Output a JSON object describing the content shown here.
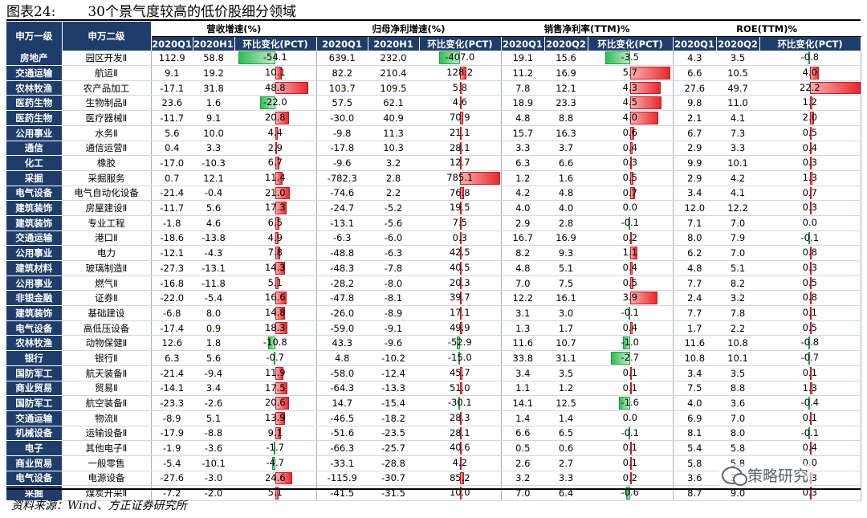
{
  "title": {
    "label": "图表24:",
    "text": "30个景气度较高的低价股细分领域"
  },
  "headers": {
    "l1": "申万一级",
    "l2": "申万二级",
    "groups": [
      "营收增速(%)",
      "归母净利增速(%)",
      "销售净利率(TTM)%",
      "ROE(TTM)%"
    ],
    "sub": [
      [
        "2020Q1",
        "2020H1",
        "环比变化(PCT)"
      ],
      [
        "2020Q1",
        "2020H1",
        "环比变化(PCT)"
      ],
      [
        "2020Q1",
        "2020Q2",
        "环比变化(PCT)"
      ],
      [
        "2020Q1",
        "2020Q2",
        "环比变化(PCT)"
      ]
    ]
  },
  "rows": [
    {
      "l1": "房地产",
      "l2": "园区开发Ⅱ",
      "rev": [
        "112.9",
        "58.8",
        "-54.1"
      ],
      "np": [
        "639.1",
        "232.0",
        "-407.0"
      ],
      "nm": [
        "19.1",
        "15.6",
        "-3.5"
      ],
      "roe": [
        "4.3",
        "3.5",
        "-0.8"
      ]
    },
    {
      "l1": "交通运输",
      "l2": "航运Ⅱ",
      "rev": [
        "9.1",
        "19.2",
        "10.1"
      ],
      "np": [
        "82.2",
        "210.4",
        "128.2"
      ],
      "nm": [
        "11.2",
        "16.9",
        "5.7"
      ],
      "roe": [
        "6.6",
        "10.5",
        "4.0"
      ]
    },
    {
      "l1": "农林牧渔",
      "l2": "农产品加工",
      "rev": [
        "-17.1",
        "31.8",
        "48.8"
      ],
      "np": [
        "103.7",
        "109.5",
        "5.8"
      ],
      "nm": [
        "7.8",
        "12.1",
        "4.3"
      ],
      "roe": [
        "27.6",
        "49.7",
        "22.2"
      ]
    },
    {
      "l1": "医药生物",
      "l2": "生物制品Ⅱ",
      "rev": [
        "23.6",
        "1.6",
        "-22.0"
      ],
      "np": [
        "57.5",
        "62.1",
        "4.6"
      ],
      "nm": [
        "18.9",
        "23.3",
        "4.5"
      ],
      "roe": [
        "9.8",
        "11.0",
        "1.2"
      ]
    },
    {
      "l1": "医药生物",
      "l2": "医疗器械Ⅱ",
      "rev": [
        "-11.7",
        "9.1",
        "20.8"
      ],
      "np": [
        "-30.0",
        "40.9",
        "70.9"
      ],
      "nm": [
        "4.8",
        "8.8",
        "4.0"
      ],
      "roe": [
        "2.1",
        "4.1",
        "2.0"
      ]
    },
    {
      "l1": "公用事业",
      "l2": "水务Ⅱ",
      "rev": [
        "5.6",
        "10.0",
        "4.4"
      ],
      "np": [
        "-9.8",
        "11.3",
        "21.1"
      ],
      "nm": [
        "15.7",
        "16.3",
        "0.6"
      ],
      "roe": [
        "6.7",
        "7.3",
        "0.5"
      ]
    },
    {
      "l1": "通信",
      "l2": "通信运营Ⅱ",
      "rev": [
        "0.4",
        "3.3",
        "2.9"
      ],
      "np": [
        "-17.8",
        "10.3",
        "28.1"
      ],
      "nm": [
        "3.3",
        "3.7",
        "0.4"
      ],
      "roe": [
        "2.9",
        "3.3",
        "0.4"
      ]
    },
    {
      "l1": "化工",
      "l2": "橡胶",
      "rev": [
        "-17.0",
        "-10.3",
        "6.7"
      ],
      "np": [
        "-9.6",
        "3.2",
        "12.7"
      ],
      "nm": [
        "6.3",
        "6.6",
        "0.3"
      ],
      "roe": [
        "9.9",
        "10.1",
        "0.3"
      ]
    },
    {
      "l1": "采掘",
      "l2": "采掘服务",
      "rev": [
        "0.7",
        "12.1",
        "11.4"
      ],
      "np": [
        "-782.3",
        "2.8",
        "785.1"
      ],
      "nm": [
        "1.2",
        "1.6",
        "0.5"
      ],
      "roe": [
        "2.9",
        "4.2",
        "1.3"
      ]
    },
    {
      "l1": "电气设备",
      "l2": "电气自动化设备",
      "rev": [
        "-21.4",
        "-0.4",
        "21.0"
      ],
      "np": [
        "-74.6",
        "2.2",
        "76.8"
      ],
      "nm": [
        "4.2",
        "4.8",
        "0.7"
      ],
      "roe": [
        "3.4",
        "4.1",
        "0.7"
      ]
    },
    {
      "l1": "建筑装饰",
      "l2": "房屋建设Ⅱ",
      "rev": [
        "-11.7",
        "5.6",
        "17.3"
      ],
      "np": [
        "-24.7",
        "-5.2",
        "19.5"
      ],
      "nm": [
        "4.0",
        "4.0",
        "0.0"
      ],
      "roe": [
        "12.0",
        "12.2",
        "0.3"
      ]
    },
    {
      "l1": "建筑装饰",
      "l2": "专业工程",
      "rev": [
        "-1.8",
        "4.6",
        "6.5"
      ],
      "np": [
        "-13.1",
        "-5.6",
        "7.5"
      ],
      "nm": [
        "2.9",
        "2.8",
        "-0.1"
      ],
      "roe": [
        "7.1",
        "7.0",
        "0.0"
      ]
    },
    {
      "l1": "交通运输",
      "l2": "港口Ⅱ",
      "rev": [
        "-18.6",
        "-13.8",
        "4.9"
      ],
      "np": [
        "-6.3",
        "-6.0",
        "0.3"
      ],
      "nm": [
        "16.7",
        "16.9",
        "0.2"
      ],
      "roe": [
        "8.0",
        "7.9",
        "-0.1"
      ]
    },
    {
      "l1": "公用事业",
      "l2": "电力",
      "rev": [
        "-12.1",
        "-4.3",
        "7.8"
      ],
      "np": [
        "-48.8",
        "-6.3",
        "42.5"
      ],
      "nm": [
        "8.2",
        "9.3",
        "1.1"
      ],
      "roe": [
        "6.2",
        "7.0",
        "0.8"
      ]
    },
    {
      "l1": "建筑材料",
      "l2": "玻璃制造Ⅱ",
      "rev": [
        "-27.3",
        "-13.1",
        "14.3"
      ],
      "np": [
        "-48.3",
        "-7.8",
        "40.5"
      ],
      "nm": [
        "4.8",
        "5.1",
        "0.4"
      ],
      "roe": [
        "4.8",
        "5.1",
        "0.3"
      ]
    },
    {
      "l1": "公用事业",
      "l2": "燃气Ⅱ",
      "rev": [
        "-16.8",
        "-11.8",
        "5.1"
      ],
      "np": [
        "-28.2",
        "-8.0",
        "20.3"
      ],
      "nm": [
        "7.0",
        "7.5",
        "0.5"
      ],
      "roe": [
        "7.7",
        "8.2",
        "0.5"
      ]
    },
    {
      "l1": "非银金融",
      "l2": "证券Ⅱ",
      "rev": [
        "-22.0",
        "-5.4",
        "16.6"
      ],
      "np": [
        "-47.8",
        "-8.1",
        "39.7"
      ],
      "nm": [
        "12.2",
        "16.1",
        "3.9"
      ],
      "roe": [
        "2.4",
        "3.2",
        "0.8"
      ]
    },
    {
      "l1": "建筑装饰",
      "l2": "基础建设",
      "rev": [
        "-6.8",
        "8.0",
        "14.8"
      ],
      "np": [
        "-26.0",
        "-8.9",
        "17.1"
      ],
      "nm": [
        "3.1",
        "3.0",
        "-0.1"
      ],
      "roe": [
        "7.7",
        "7.8",
        "0.1"
      ]
    },
    {
      "l1": "电气设备",
      "l2": "高低压设备",
      "rev": [
        "-17.4",
        "0.9",
        "18.3"
      ],
      "np": [
        "-59.0",
        "-9.1",
        "49.9"
      ],
      "nm": [
        "1.3",
        "1.7",
        "0.4"
      ],
      "roe": [
        "1.7",
        "2.2",
        "0.5"
      ]
    },
    {
      "l1": "农林牧渔",
      "l2": "动物保健Ⅱ",
      "rev": [
        "12.6",
        "1.8",
        "-10.8"
      ],
      "np": [
        "43.3",
        "-9.6",
        "-52.9"
      ],
      "nm": [
        "11.6",
        "10.7",
        "-1.0"
      ],
      "roe": [
        "11.6",
        "10.8",
        "-0.8"
      ]
    },
    {
      "l1": "银行",
      "l2": "银行Ⅱ",
      "rev": [
        "6.3",
        "5.6",
        "-0.7"
      ],
      "np": [
        "4.8",
        "-10.2",
        "-15.0"
      ],
      "nm": [
        "33.8",
        "31.1",
        "-2.7"
      ],
      "roe": [
        "10.8",
        "10.1",
        "-0.7"
      ]
    },
    {
      "l1": "国防军工",
      "l2": "航天装备Ⅱ",
      "rev": [
        "-21.4",
        "-9.4",
        "11.9"
      ],
      "np": [
        "-58.0",
        "-12.4",
        "45.7"
      ],
      "nm": [
        "3.4",
        "3.5",
        "0.1"
      ],
      "roe": [
        "3.4",
        "3.5",
        "0.1"
      ]
    },
    {
      "l1": "商业贸易",
      "l2": "贸易Ⅱ",
      "rev": [
        "-14.1",
        "3.4",
        "17.5"
      ],
      "np": [
        "-64.3",
        "-13.3",
        "51.0"
      ],
      "nm": [
        "1.1",
        "1.2",
        "0.1"
      ],
      "roe": [
        "7.5",
        "8.8",
        "1.3"
      ]
    },
    {
      "l1": "国防军工",
      "l2": "航空装备Ⅱ",
      "rev": [
        "-23.3",
        "-2.6",
        "20.6"
      ],
      "np": [
        "14.7",
        "-15.4",
        "-30.1"
      ],
      "nm": [
        "14.1",
        "12.5",
        "-1.6"
      ],
      "roe": [
        "4.0",
        "3.6",
        "-0.4"
      ]
    },
    {
      "l1": "交通运输",
      "l2": "物流Ⅱ",
      "rev": [
        "-8.9",
        "5.1",
        "13.9"
      ],
      "np": [
        "-46.5",
        "-18.2",
        "28.3"
      ],
      "nm": [
        "1.4",
        "1.4",
        "0.0"
      ],
      "roe": [
        "6.9",
        "7.0",
        "0.1"
      ]
    },
    {
      "l1": "机械设备",
      "l2": "运输设备Ⅱ",
      "rev": [
        "-17.9",
        "-8.8",
        "9.1"
      ],
      "np": [
        "-51.6",
        "-23.5",
        "28.1"
      ],
      "nm": [
        "6.6",
        "6.5",
        "-0.1"
      ],
      "roe": [
        "8.1",
        "8.0",
        "-0.1"
      ]
    },
    {
      "l1": "电子",
      "l2": "其他电子Ⅱ",
      "rev": [
        "-1.9",
        "-3.6",
        "-1.7"
      ],
      "np": [
        "-66.3",
        "-25.7",
        "40.6"
      ],
      "nm": [
        "0.5",
        "0.6",
        "0.1"
      ],
      "roe": [
        "5.4",
        "5.8",
        "0.4"
      ]
    },
    {
      "l1": "商业贸易",
      "l2": "一般零售",
      "rev": [
        "-5.4",
        "-10.1",
        "-4.7"
      ],
      "np": [
        "-33.1",
        "-28.8",
        "4.2"
      ],
      "nm": [
        "2.6",
        "2.7",
        "0.1"
      ],
      "roe": [
        "5.8",
        "5.8",
        "0.0"
      ]
    },
    {
      "l1": "电气设备",
      "l2": "电源设备",
      "rev": [
        "-27.6",
        "-3.0",
        "24.6"
      ],
      "np": [
        "-115.9",
        "-30.7",
        "85.2"
      ],
      "nm": [
        "3.2",
        "3.3",
        "0.2"
      ],
      "roe": [
        "3.6",
        "3.9",
        "0.3"
      ]
    },
    {
      "l1": "采掘",
      "l2": "煤炭开采Ⅱ",
      "rev": [
        "-7.2",
        "-2.0",
        "5.1"
      ],
      "np": [
        "-41.5",
        "-31.5",
        "10.0"
      ],
      "nm": [
        "7.0",
        "6.4",
        "-0.6"
      ],
      "roe": [
        "8.7",
        "9.0",
        "0.3"
      ]
    }
  ],
  "bar_scale": {
    "rev": 60,
    "np": 800,
    "nm": 6,
    "roe": 22.2
  },
  "colors": {
    "header_bg": "#1f3d6b",
    "pos": "#e8292c",
    "neg": "#2fbe54"
  },
  "source": "资料来源：Wind、方正证券研究所",
  "watermark": "策略研究"
}
